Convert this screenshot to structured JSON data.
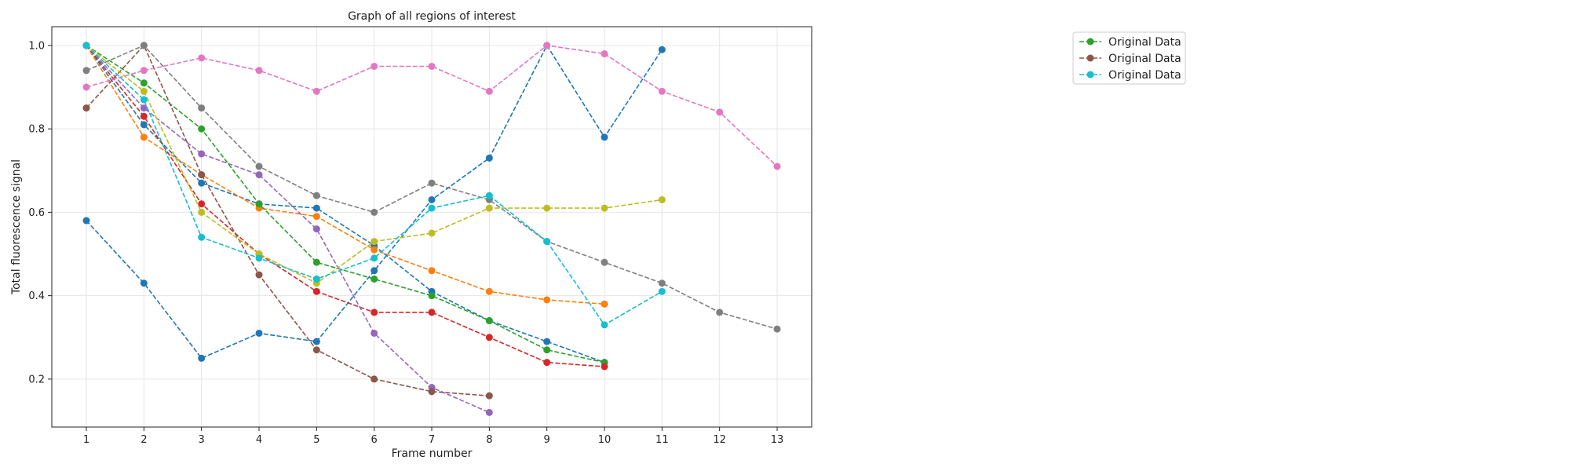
{
  "chart_data": {
    "type": "line",
    "title": "Graph of all regions of interest",
    "xlabel": "Frame number",
    "ylabel": "Total fluorescence signal",
    "xlim": [
      0.4,
      13.6
    ],
    "ylim": [
      0.085,
      1.045
    ],
    "xticks": [
      1,
      2,
      3,
      4,
      5,
      6,
      7,
      8,
      9,
      10,
      11,
      12,
      13
    ],
    "yticks": [
      0.2,
      0.4,
      0.6,
      0.8,
      1.0
    ],
    "ytick_labels": [
      "0.2",
      "0.4",
      "0.6",
      "0.8",
      "1.0"
    ],
    "grid": true,
    "legend_position": "outside-right",
    "legend": [
      {
        "label": "Original Data",
        "color": "#2ca02c"
      },
      {
        "label": "Original Data",
        "color": "#8c564b"
      },
      {
        "label": "Original Data",
        "color": "#17becf"
      }
    ],
    "series": [
      {
        "color": "#1f77b4",
        "x": [
          1,
          2,
          3,
          4,
          5,
          6,
          7,
          8,
          9,
          10,
          11
        ],
        "y": [
          0.58,
          0.43,
          0.25,
          0.31,
          0.29,
          0.46,
          0.63,
          0.73,
          1.0,
          0.78,
          0.99
        ]
      },
      {
        "color": "#1f77b4",
        "x": [
          1,
          2,
          3,
          4,
          5,
          6,
          7,
          8,
          9,
          10
        ],
        "y": [
          1.0,
          0.81,
          0.67,
          0.62,
          0.61,
          0.52,
          0.41,
          0.34,
          0.29,
          0.24
        ]
      },
      {
        "color": "#ff7f0e",
        "x": [
          1,
          2,
          3,
          4,
          5,
          6,
          7,
          8,
          9,
          10
        ],
        "y": [
          1.0,
          0.78,
          0.69,
          0.61,
          0.59,
          0.51,
          0.46,
          0.41,
          0.39,
          0.38
        ]
      },
      {
        "color": "#2ca02c",
        "x": [
          1,
          2,
          3,
          4,
          5,
          6,
          7,
          8,
          9,
          10
        ],
        "y": [
          1.0,
          0.91,
          0.8,
          0.62,
          0.48,
          0.44,
          0.4,
          0.34,
          0.27,
          0.24
        ]
      },
      {
        "color": "#d62728",
        "x": [
          1,
          2,
          3,
          4,
          5,
          6,
          7,
          8,
          9,
          10
        ],
        "y": [
          1.0,
          0.83,
          0.62,
          0.5,
          0.41,
          0.36,
          0.36,
          0.3,
          0.24,
          0.23
        ]
      },
      {
        "color": "#9467bd",
        "x": [
          1,
          2,
          3,
          4,
          5,
          6,
          7,
          8
        ],
        "y": [
          1.0,
          0.85,
          0.74,
          0.69,
          0.56,
          0.31,
          0.18,
          0.12
        ]
      },
      {
        "color": "#8c564b",
        "x": [
          1,
          2,
          3,
          4,
          5,
          6,
          7,
          8
        ],
        "y": [
          0.85,
          1.0,
          0.69,
          0.45,
          0.27,
          0.2,
          0.17,
          0.16
        ]
      },
      {
        "color": "#e377c2",
        "x": [
          1,
          2,
          3,
          4,
          5,
          6,
          7,
          8,
          9,
          10,
          11,
          12,
          13
        ],
        "y": [
          0.9,
          0.94,
          0.97,
          0.94,
          0.89,
          0.95,
          0.95,
          0.89,
          1.0,
          0.98,
          0.89,
          0.84,
          0.71
        ]
      },
      {
        "color": "#7f7f7f",
        "x": [
          1,
          2,
          3,
          4,
          5,
          6,
          7,
          8,
          9,
          10,
          11,
          12,
          13
        ],
        "y": [
          0.94,
          1.0,
          0.85,
          0.71,
          0.64,
          0.6,
          0.67,
          0.63,
          0.53,
          0.48,
          0.43,
          0.36,
          0.32
        ]
      },
      {
        "color": "#bcbd22",
        "x": [
          1,
          2,
          3,
          4,
          5,
          6,
          7,
          8,
          9,
          10,
          11
        ],
        "y": [
          1.0,
          0.89,
          0.6,
          0.5,
          0.43,
          0.53,
          0.55,
          0.61,
          0.61,
          0.61,
          0.63
        ]
      },
      {
        "color": "#17becf",
        "x": [
          1,
          2,
          3,
          4,
          5,
          6,
          7,
          8,
          9,
          10,
          11
        ],
        "y": [
          1.0,
          0.87,
          0.54,
          0.49,
          0.44,
          0.49,
          0.61,
          0.64,
          0.53,
          0.33,
          0.41
        ]
      }
    ]
  }
}
